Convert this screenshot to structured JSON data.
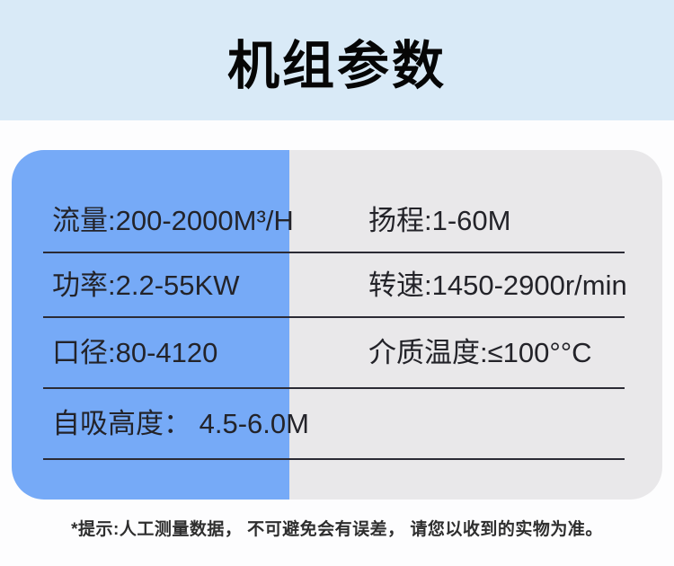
{
  "header": {
    "title": "机组参数"
  },
  "specs": {
    "rows": [
      {
        "left": "流量:200-2000M³/H",
        "right": "扬程:1-60M"
      },
      {
        "left": "功率:2.2-55KW",
        "right": "转速:1450-2900r/min"
      },
      {
        "left": "口径:80-4120",
        "right": "介质温度:≤100°°C"
      },
      {
        "left": "自吸高度： 4.5-6.0M",
        "right": ""
      }
    ]
  },
  "footer": {
    "note": "*提示:人工测量数据， 不可避免会有误差， 请您以收到的实物为准。"
  },
  "colors": {
    "header_bg": "#d9eaf7",
    "card_left_bg": "#76aaf7",
    "card_right_bg": "#e9e8ea",
    "separator": "#2b2b35",
    "text": "#232329"
  }
}
